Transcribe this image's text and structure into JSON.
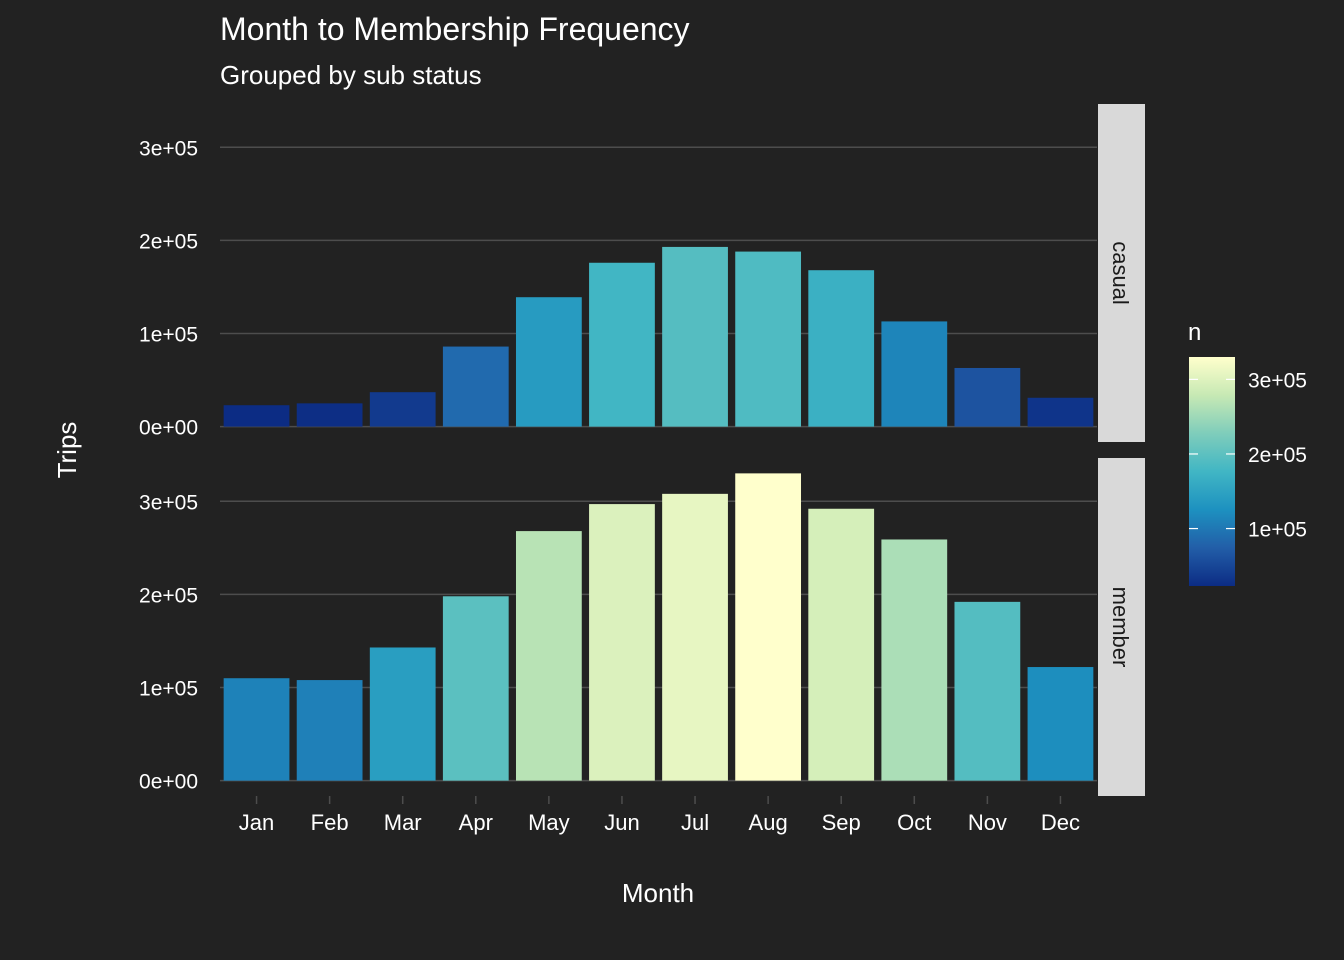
{
  "chart_data": {
    "type": "bar",
    "title": "Month to Membership Frequency",
    "subtitle": "Grouped by sub status",
    "xlabel": "Month",
    "ylabel": "Trips",
    "categories": [
      "Jan",
      "Feb",
      "Mar",
      "Apr",
      "May",
      "Jun",
      "Jul",
      "Aug",
      "Sep",
      "Oct",
      "Nov",
      "Dec"
    ],
    "ylim": [
      0,
      330000
    ],
    "y_ticks": [
      0,
      100000,
      200000,
      300000
    ],
    "y_tick_labels": [
      "0e+00",
      "1e+05",
      "2e+05",
      "3e+05"
    ],
    "facets": [
      {
        "name": "casual",
        "values": [
          23000,
          25000,
          37000,
          86000,
          139000,
          176000,
          193000,
          188000,
          168000,
          113000,
          63000,
          31000
        ]
      },
      {
        "name": "member",
        "values": [
          110000,
          108000,
          143000,
          198000,
          268000,
          297000,
          308000,
          330000,
          292000,
          259000,
          192000,
          122000
        ]
      }
    ],
    "legend": {
      "title": "n",
      "position": "right",
      "min": 23000,
      "max": 330000,
      "ticks": [
        100000,
        200000,
        300000
      ],
      "tick_labels": [
        "1e+05",
        "2e+05",
        "3e+05"
      ],
      "colormap": [
        "#0c2c84",
        "#225ea8",
        "#1d91c0",
        "#41b6c4",
        "#7fcdbb",
        "#c7e9b4",
        "#ffffcc"
      ]
    },
    "grid": true,
    "colors": {
      "background": "#222222",
      "grid": "#4d4d4d",
      "strip": "#d9d9d9",
      "text": "#ffffff",
      "strip_text": "#1a1a1a"
    }
  }
}
